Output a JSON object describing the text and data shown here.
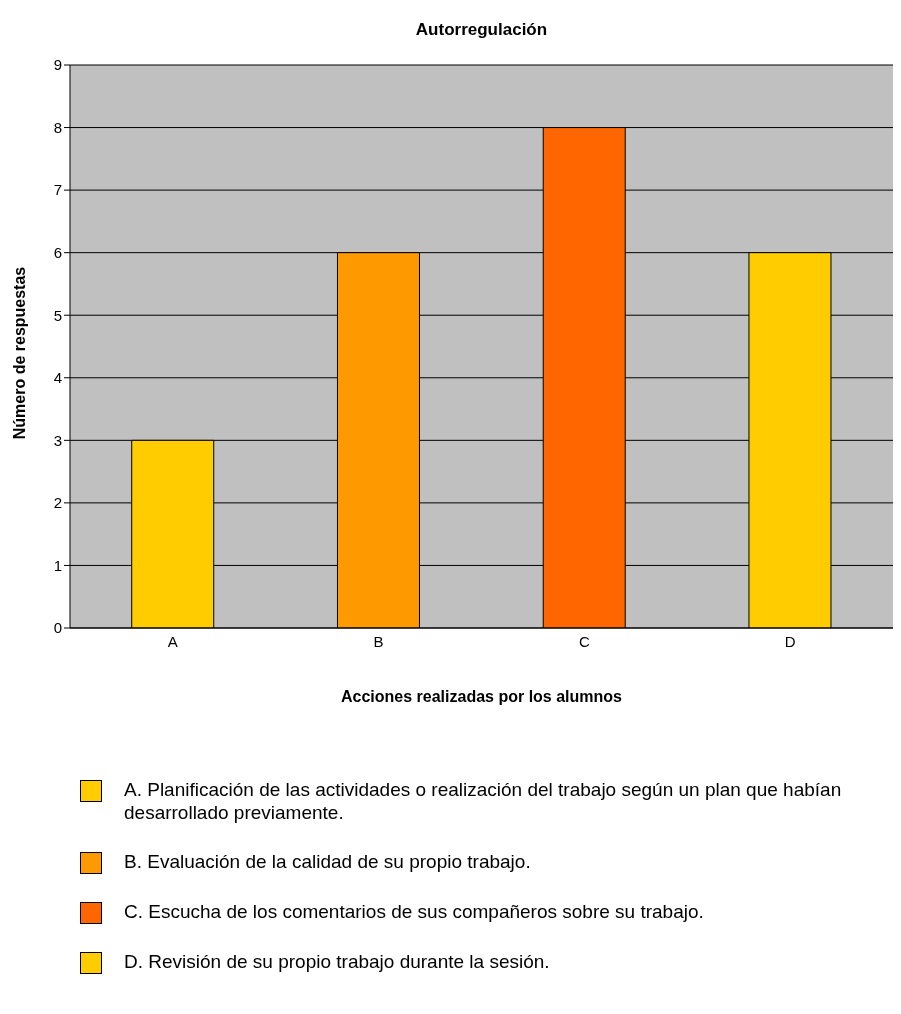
{
  "chart_data": {
    "type": "bar",
    "title": "Autorregulación",
    "xlabel": "Acciones realizadas por los alumnos",
    "ylabel": "Número de respuestas",
    "categories": [
      "A",
      "B",
      "C",
      "D"
    ],
    "series": [
      {
        "name": "A. Planificación de las actividades o realización del trabajo según un plan que habían desarrollado previamente.",
        "color": "#ffcc00",
        "values": [
          3,
          null,
          null,
          null
        ]
      },
      {
        "name": "B. Evaluación de la calidad de su propio trabajo.",
        "color": "#ff9900",
        "values": [
          null,
          6,
          null,
          null
        ]
      },
      {
        "name": "C. Escucha de los comentarios de sus compañeros sobre su trabajo.",
        "color": "#ff6600",
        "values": [
          null,
          null,
          8,
          null
        ]
      },
      {
        "name": "D. Revisión de su propio trabajo durante la sesión.",
        "color": "#ffcc00",
        "values": [
          null,
          null,
          null,
          6
        ]
      }
    ],
    "stacked": true,
    "ylim": [
      0,
      9
    ],
    "yticks": [
      0,
      1,
      2,
      3,
      4,
      5,
      6,
      7,
      8,
      9
    ],
    "grid": "y",
    "legend": "bottom"
  }
}
